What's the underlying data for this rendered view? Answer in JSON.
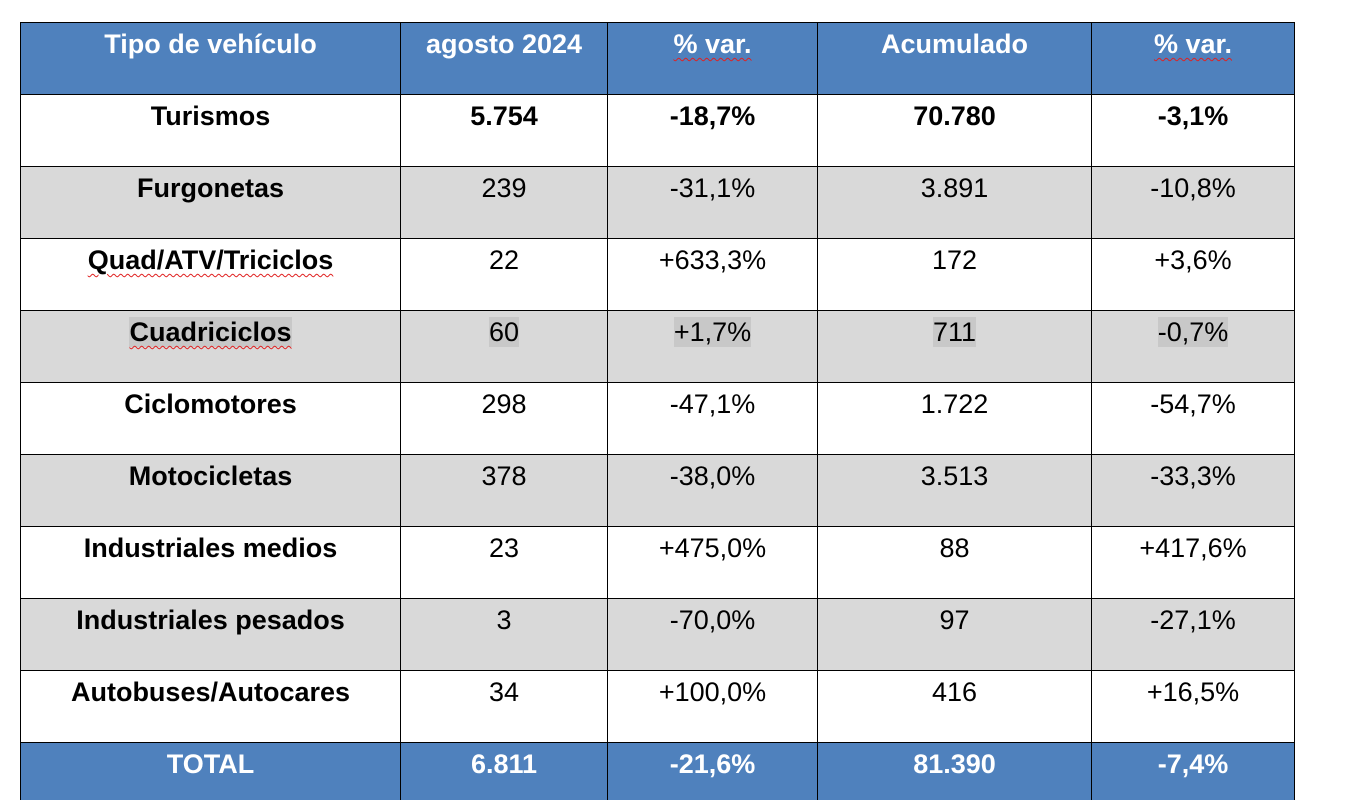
{
  "table": {
    "headers": [
      "Tipo de vehículo",
      "agosto 2024",
      "% var.",
      "Acumulado",
      "% var."
    ],
    "rows": [
      [
        "Turismos",
        "5.754",
        "-18,7%",
        "70.780",
        "-3,1%"
      ],
      [
        "Furgonetas",
        "239",
        "-31,1%",
        "3.891",
        "-10,8%"
      ],
      [
        "Quad/ATV/Triciclos",
        "22",
        "+633,3%",
        "172",
        "+3,6%"
      ],
      [
        "Cuadriciclos",
        "60",
        "+1,7%",
        "711",
        "-0,7%"
      ],
      [
        "Ciclomotores",
        "298",
        "-47,1%",
        "1.722",
        "-54,7%"
      ],
      [
        "Motocicletas",
        "378",
        "-38,0%",
        "3.513",
        "-33,3%"
      ],
      [
        "Industriales medios",
        "23",
        "+475,0%",
        "88",
        "+417,6%"
      ],
      [
        "Industriales pesados",
        "3",
        "-70,0%",
        "97",
        "-27,1%"
      ],
      [
        "Autobuses/Autocares",
        "34",
        "+100,0%",
        "416",
        "+16,5%"
      ]
    ],
    "total": [
      "TOTAL",
      "6.811",
      "-21,6%",
      "81.390",
      "-7,4%"
    ]
  },
  "colors": {
    "header_bg": "#4f81bd",
    "header_text": "#ffffff",
    "shaded_row": "#d9d9d9",
    "spellcheck_underline": "#e02020"
  }
}
